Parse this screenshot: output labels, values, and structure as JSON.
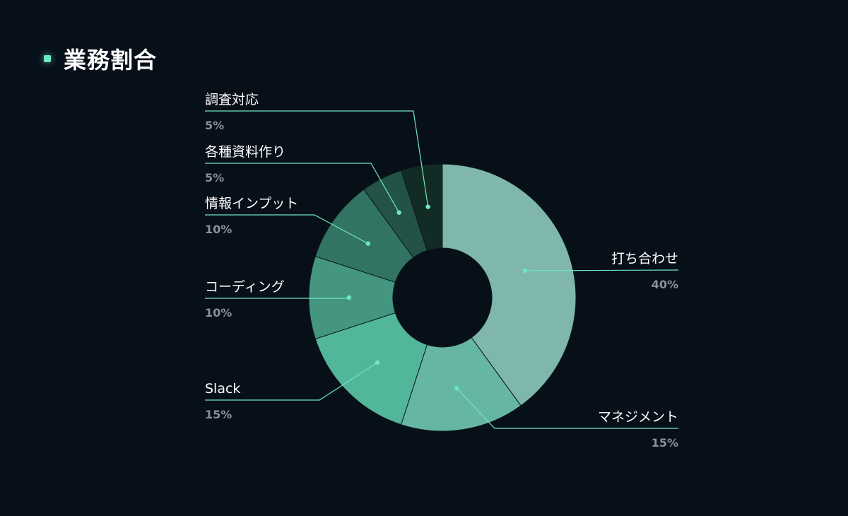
{
  "header": {
    "title": "業務割合"
  },
  "colors": {
    "background": "#070f19",
    "accent": "#6ee8c2",
    "label_text": "#ffffff",
    "percent_text": "#8a9097",
    "leader_line": "#6ee8c2"
  },
  "chart_data": {
    "type": "pie",
    "variant": "donut",
    "title": "業務割合",
    "slices": [
      {
        "label": "打ち合わせ",
        "value": 40,
        "percent_label": "40%",
        "color": "#7fb7ad"
      },
      {
        "label": "マネジメント",
        "value": 15,
        "percent_label": "15%",
        "color": "#66b6a6"
      },
      {
        "label": "Slack",
        "value": 15,
        "percent_label": "15%",
        "color": "#52b69b"
      },
      {
        "label": "コーディング",
        "value": 10,
        "percent_label": "10%",
        "color": "#449680"
      },
      {
        "label": "情報インプット",
        "value": 10,
        "percent_label": "10%",
        "color": "#327463"
      },
      {
        "label": "各種資料作り",
        "value": 5,
        "percent_label": "5%",
        "color": "#235346"
      },
      {
        "label": "調査対応",
        "value": 5,
        "percent_label": "5%",
        "color": "#132b25"
      }
    ]
  }
}
